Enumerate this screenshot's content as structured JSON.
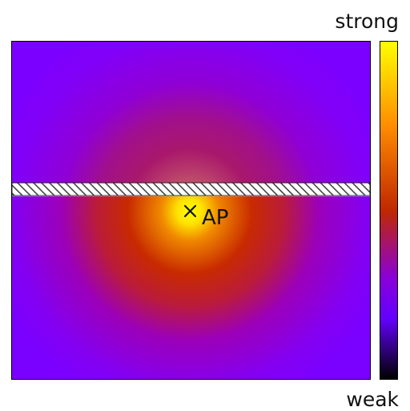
{
  "heatmap": {
    "source_label": "AP",
    "source_marker": "x-mark-icon",
    "colors": {
      "background": "#7f00ff",
      "mid": "#c32200",
      "hot": "#f08000",
      "peak": "#ffff00"
    }
  },
  "wall": {
    "pattern": "diagonal-hatch",
    "colors": {
      "fill": "#ffffff",
      "stroke": "#333333"
    }
  },
  "colorbar": {
    "top_label": "strong",
    "bottom_label": "weak",
    "stops": [
      "#ffff00",
      "#ff8c00",
      "#c02800",
      "#8a00d8",
      "#6400ff",
      "#000000"
    ]
  }
}
